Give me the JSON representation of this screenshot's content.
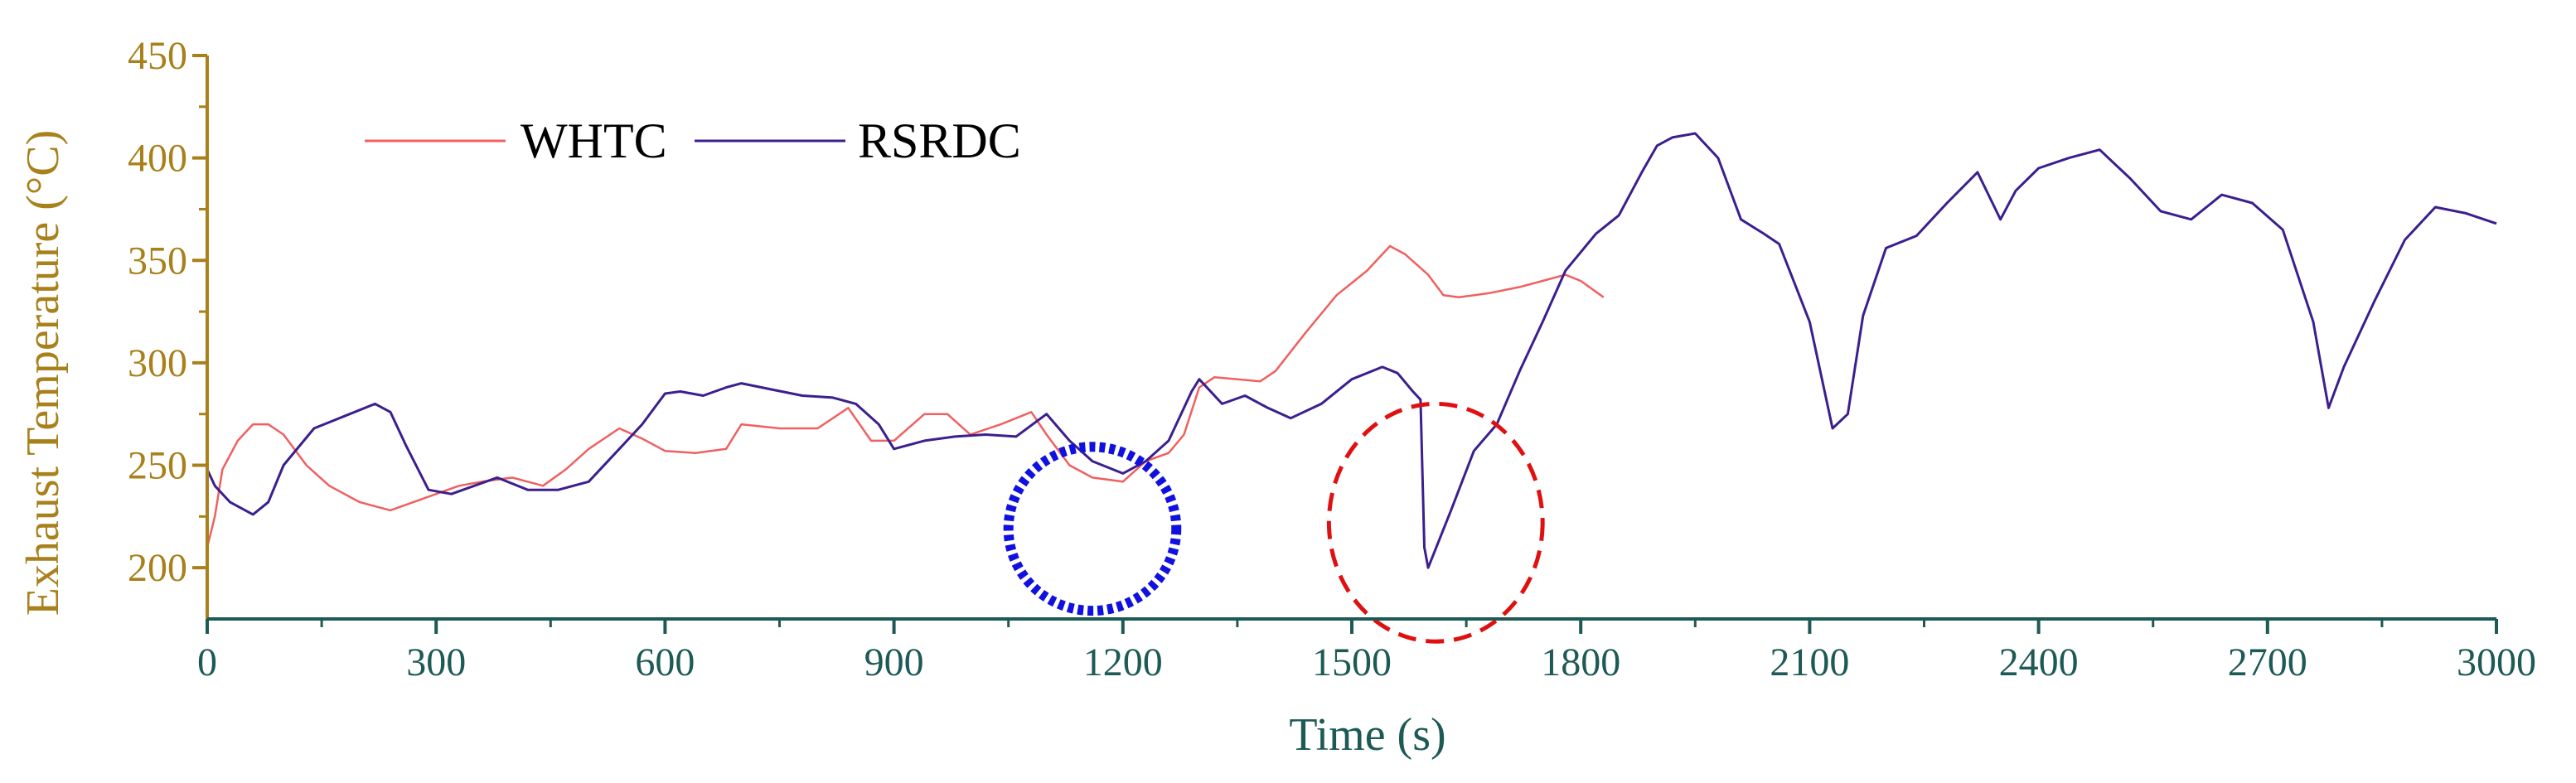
{
  "chart_data": {
    "type": "line",
    "xlabel": "Time (s)",
    "ylabel": "Exhaust Temperature (°C)",
    "xlim": [
      0,
      3000
    ],
    "ylim": [
      175,
      450
    ],
    "x_ticks": [
      0,
      300,
      600,
      900,
      1200,
      1500,
      1800,
      2100,
      2400,
      2700,
      3000
    ],
    "x_tick_labels": [
      "0",
      "300",
      "600",
      "900",
      "1200",
      "1500",
      "1800",
      "2100",
      "2400",
      "2700",
      "3000"
    ],
    "y_ticks": [
      200,
      250,
      300,
      350,
      400,
      450
    ],
    "y_tick_labels": [
      "200",
      "250",
      "300",
      "350",
      "400",
      "450"
    ],
    "grid": false,
    "legend_position": "top-left",
    "colors": {
      "x_axis": "#1d5a55",
      "y_axis": "#a8801c",
      "whtc": "#f06060",
      "rsrdc": "#3b1f8f",
      "blue_marker": "#1010e0",
      "red_marker": "#e01010"
    },
    "series": [
      {
        "name": "WHTC",
        "color": "#f06060",
        "x": [
          0,
          10,
          20,
          40,
          60,
          80,
          100,
          130,
          160,
          200,
          240,
          270,
          300,
          330,
          360,
          400,
          440,
          470,
          500,
          540,
          570,
          600,
          640,
          680,
          700,
          750,
          800,
          840,
          870,
          900,
          940,
          970,
          1000,
          1040,
          1080,
          1100,
          1130,
          1160,
          1200,
          1230,
          1260,
          1280,
          1300,
          1320,
          1350,
          1380,
          1400,
          1440,
          1480,
          1520,
          1550,
          1570,
          1600,
          1620,
          1640,
          1680,
          1720,
          1750,
          1780,
          1800,
          1830
        ],
        "y": [
          210,
          225,
          248,
          262,
          270,
          270,
          265,
          250,
          240,
          232,
          228,
          232,
          236,
          240,
          242,
          244,
          240,
          248,
          258,
          268,
          263,
          257,
          256,
          258,
          270,
          268,
          268,
          278,
          262,
          262,
          275,
          275,
          265,
          270,
          276,
          265,
          250,
          244,
          242,
          252,
          256,
          265,
          288,
          293,
          292,
          291,
          296,
          315,
          333,
          345,
          357,
          353,
          343,
          333,
          332,
          334,
          337,
          340,
          343,
          340,
          332
        ]
      },
      {
        "name": "RSRDC",
        "color": "#3b1f8f",
        "x": [
          0,
          10,
          30,
          60,
          80,
          100,
          140,
          180,
          220,
          240,
          260,
          290,
          320,
          350,
          380,
          420,
          460,
          500,
          540,
          570,
          600,
          620,
          650,
          680,
          700,
          740,
          780,
          820,
          850,
          880,
          900,
          940,
          980,
          1020,
          1060,
          1100,
          1130,
          1160,
          1200,
          1230,
          1260,
          1290,
          1300,
          1330,
          1360,
          1390,
          1420,
          1460,
          1500,
          1540,
          1560,
          1580,
          1590,
          1595,
          1600,
          1630,
          1660,
          1690,
          1720,
          1750,
          1780,
          1820,
          1850,
          1880,
          1900,
          1920,
          1950,
          1980,
          2010,
          2040,
          2060,
          2100,
          2130,
          2150,
          2170,
          2200,
          2240,
          2280,
          2320,
          2350,
          2370,
          2400,
          2440,
          2480,
          2520,
          2560,
          2600,
          2640,
          2680,
          2720,
          2760,
          2780,
          2800,
          2840,
          2880,
          2920,
          2960,
          3000
        ],
        "y": [
          248,
          240,
          232,
          226,
          232,
          250,
          268,
          274,
          280,
          276,
          260,
          238,
          236,
          240,
          244,
          238,
          238,
          242,
          258,
          270,
          285,
          286,
          284,
          288,
          290,
          287,
          284,
          283,
          280,
          270,
          258,
          262,
          264,
          265,
          264,
          275,
          262,
          252,
          246,
          252,
          262,
          286,
          292,
          280,
          284,
          278,
          273,
          280,
          292,
          298,
          295,
          286,
          282,
          210,
          200,
          228,
          257,
          270,
          296,
          320,
          345,
          363,
          372,
          393,
          406,
          410,
          412,
          400,
          370,
          363,
          358,
          320,
          268,
          275,
          323,
          356,
          362,
          378,
          393,
          370,
          384,
          395,
          400,
          404,
          390,
          374,
          370,
          382,
          378,
          365,
          320,
          278,
          298,
          330,
          360,
          376,
          373,
          368
        ]
      }
    ],
    "annotations": [
      {
        "shape": "ellipse",
        "style": "dotted",
        "color": "#1010e0",
        "center": [
          1160,
          219
        ],
        "radius_x": 110,
        "radius_y": 40
      },
      {
        "shape": "ellipse",
        "style": "dashed",
        "color": "#e01010",
        "center": [
          1610,
          222
        ],
        "radius_x": 140,
        "radius_y": 58
      }
    ]
  }
}
